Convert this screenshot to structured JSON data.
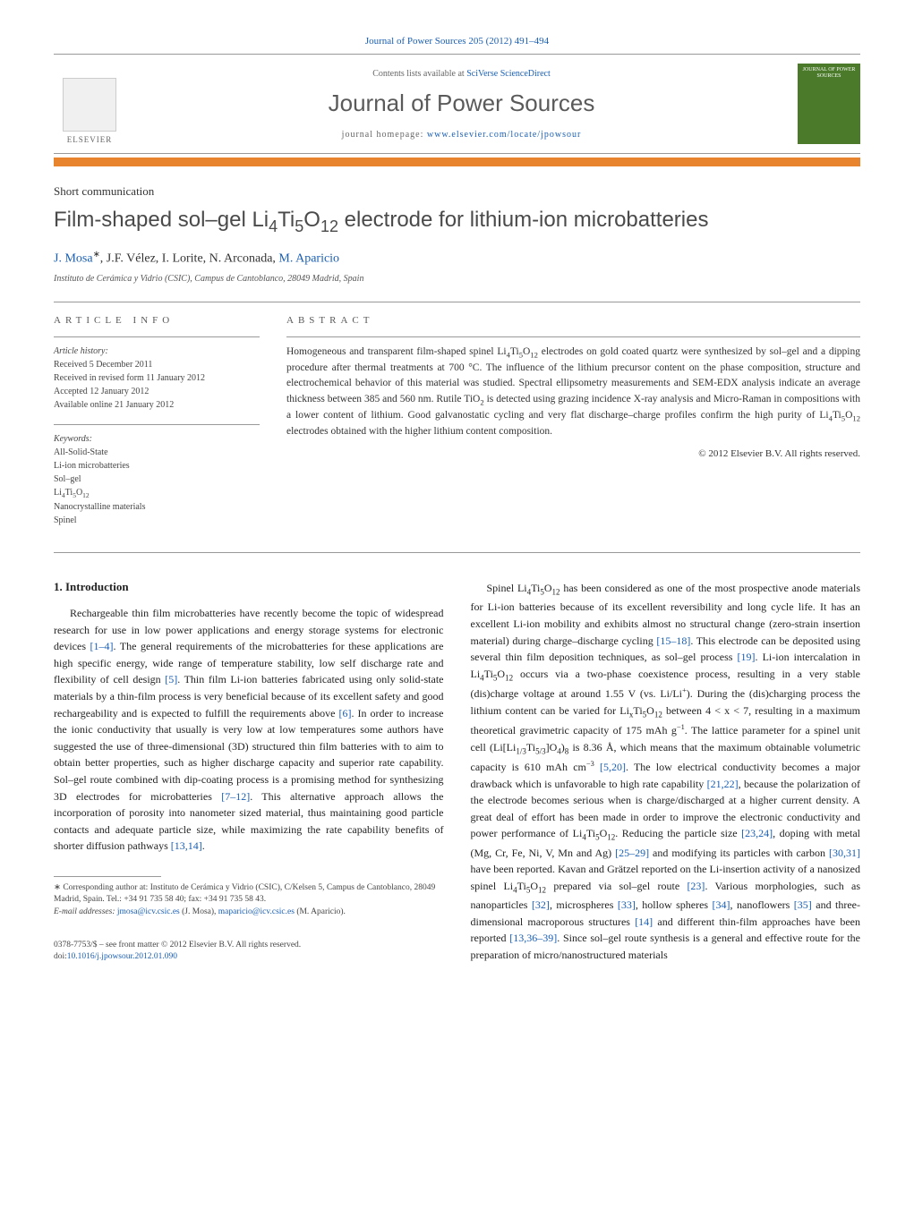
{
  "journal": {
    "citation_pre": "Journal of Power Sources 205 (2012) 491–494",
    "citation_link": "Journal of Power Sources",
    "contents_pre": "Contents lists available at ",
    "contents_link": "SciVerse ScienceDirect",
    "title": "Journal of Power Sources",
    "homepage_pre": "journal homepage: ",
    "homepage_link": "www.elsevier.com/locate/jpowsour",
    "publisher": "ELSEVIER",
    "cover_text": "JOURNAL OF POWER SOURCES"
  },
  "article": {
    "type": "Short communication",
    "title_html": "Film-shaped sol–gel Li<sub>4</sub>Ti<sub>5</sub>O<sub>12</sub> electrode for lithium-ion microbatteries",
    "authors_html": "<a class=\"author-link\" href=\"#\">J. Mosa</a><sup>∗</sup>, J.F. Vélez, I. Lorite, N. Arconada, <a class=\"author-link\" href=\"#\">M. Aparicio</a>",
    "affiliation": "Instituto de Cerámica y Vidrio (CSIC), Campus de Cantoblanco, 28049 Madrid, Spain"
  },
  "info": {
    "label": "ARTICLE INFO",
    "history_title": "Article history:",
    "history_lines": [
      "Received 5 December 2011",
      "Received in revised form 11 January 2012",
      "Accepted 12 January 2012",
      "Available online 21 January 2012"
    ],
    "keywords_title": "Keywords:",
    "keywords_html": [
      "All-Solid-State",
      "Li-ion microbatteries",
      "Sol–gel",
      "Li<sub>4</sub>Ti<sub>5</sub>O<sub>12</sub>",
      "Nanocrystalline materials",
      "Spinel"
    ]
  },
  "abstract": {
    "label": "ABSTRACT",
    "text_html": "Homogeneous and transparent film-shaped spinel Li<sub>4</sub>Ti<sub>5</sub>O<sub>12</sub> electrodes on gold coated quartz were synthesized by sol–gel and a dipping procedure after thermal treatments at 700 °C. The influence of the lithium precursor content on the phase composition, structure and electrochemical behavior of this material was studied. Spectral ellipsometry measurements and SEM-EDX analysis indicate an average thickness between 385 and 560 nm. Rutile TiO<sub>2</sub> is detected using grazing incidence X-ray analysis and Micro-Raman in compositions with a lower content of lithium. Good galvanostatic cycling and very flat discharge–charge profiles confirm the high purity of Li<sub>4</sub>Ti<sub>5</sub>O<sub>12</sub> electrodes obtained with the higher lithium content composition.",
    "copyright": "© 2012 Elsevier B.V. All rights reserved."
  },
  "body": {
    "section_heading": "1. Introduction",
    "col1_html": "Rechargeable thin film microbatteries have recently become the topic of widespread research for use in low power applications and energy storage systems for electronic devices <a class=\"ref-link\" href=\"#\">[1–4]</a>. The general requirements of the microbatteries for these applications are high specific energy, wide range of temperature stability, low self discharge rate and flexibility of cell design <a class=\"ref-link\" href=\"#\">[5]</a>. Thin film Li-ion batteries fabricated using only solid-state materials by a thin-film process is very beneficial because of its excellent safety and good rechargeability and is expected to fulfill the requirements above <a class=\"ref-link\" href=\"#\">[6]</a>. In order to increase the ionic conductivity that usually is very low at low temperatures some authors have suggested the use of three-dimensional (3D) structured thin film batteries with to aim to obtain better properties, such as higher discharge capacity and superior rate capability. Sol–gel route combined with dip-coating process is a promising method for synthesizing 3D electrodes for microbatteries <a class=\"ref-link\" href=\"#\">[7–12]</a>. This alternative approach allows the incorporation of porosity into nanometer sized material, thus maintaining good particle contacts and adequate particle size, while maximizing the rate capability benefits of shorter diffusion pathways <a class=\"ref-link\" href=\"#\">[13,14]</a>.",
    "col2_html": "Spinel Li<sub>4</sub>Ti<sub>5</sub>O<sub>12</sub> has been considered as one of the most prospective anode materials for Li-ion batteries because of its excellent reversibility and long cycle life. It has an excellent Li-ion mobility and exhibits almost no structural change (zero-strain insertion material) during charge–discharge cycling <a class=\"ref-link\" href=\"#\">[15–18]</a>. This electrode can be deposited using several thin film deposition techniques, as sol–gel process <a class=\"ref-link\" href=\"#\">[19]</a>. Li-ion intercalation in Li<sub>4</sub>Ti<sub>5</sub>O<sub>12</sub> occurs via a two-phase coexistence process, resulting in a very stable (dis)charge voltage at around 1.55 V (vs. Li/Li<sup>+</sup>). During the (dis)charging process the lithium content can be varied for Li<sub>x</sub>Ti<sub>5</sub>O<sub>12</sub> between 4 &lt; x &lt; 7, resulting in a maximum theoretical gravimetric capacity of 175 mAh g<sup>−1</sup>. The lattice parameter for a spinel unit cell (Li[Li<sub>1/3</sub>Ti<sub>5/3</sub>]O<sub>4</sub>)<sub>8</sub> is 8.36 Å, which means that the maximum obtainable volumetric capacity is 610 mAh cm<sup>−3</sup> <a class=\"ref-link\" href=\"#\">[5,20]</a>. The low electrical conductivity becomes a major drawback which is unfavorable to high rate capability <a class=\"ref-link\" href=\"#\">[21,22]</a>, because the polarization of the electrode becomes serious when is charge/discharged at a higher current density. A great deal of effort has been made in order to improve the electronic conductivity and power performance of Li<sub>4</sub>Ti<sub>5</sub>O<sub>12</sub>. Reducing the particle size <a class=\"ref-link\" href=\"#\">[23,24]</a>, doping with metal (Mg, Cr, Fe, Ni, V, Mn and Ag) <a class=\"ref-link\" href=\"#\">[25–29]</a> and modifying its particles with carbon <a class=\"ref-link\" href=\"#\">[30,31]</a> have been reported. Kavan and Grätzel reported on the Li-insertion activity of a nanosized spinel Li<sub>4</sub>Ti<sub>5</sub>O<sub>12</sub> prepared via sol–gel route <a class=\"ref-link\" href=\"#\">[23]</a>. Various morphologies, such as nanoparticles <a class=\"ref-link\" href=\"#\">[32]</a>, microspheres <a class=\"ref-link\" href=\"#\">[33]</a>, hollow spheres <a class=\"ref-link\" href=\"#\">[34]</a>, nanoflowers <a class=\"ref-link\" href=\"#\">[35]</a> and three-dimensional macroporous structures <a class=\"ref-link\" href=\"#\">[14]</a> and different thin-film approaches have been reported <a class=\"ref-link\" href=\"#\">[13,36–39]</a>. Since sol–gel route synthesis is a general and effective route for the preparation of micro/nanostructured materials"
  },
  "footnote": {
    "corr_html": "∗ Corresponding author at: Instituto de Cerámica y Vidrio (CSIC), C/Kelsen 5, Campus de Cantoblanco, 28049 Madrid, Spain. Tel.: +34 91 735 58 40; fax: +34 91 735 58 43.",
    "email_label": "E-mail addresses:",
    "email1": "jmosa@icv.csic.es",
    "email1_who": " (J. Mosa), ",
    "email2": "maparicio@icv.csic.es",
    "email2_who": " (M. Aparicio)."
  },
  "bottom": {
    "issn": "0378-7753/$ – see front matter © 2012 Elsevier B.V. All rights reserved.",
    "doi_pre": "doi:",
    "doi_link": "10.1016/j.jpowsour.2012.01.090"
  },
  "colors": {
    "link": "#1a5fb4",
    "orange_bar": "#e8842e",
    "gray_text": "#5a5a5a",
    "cover_bg": "#4a7a2a"
  }
}
